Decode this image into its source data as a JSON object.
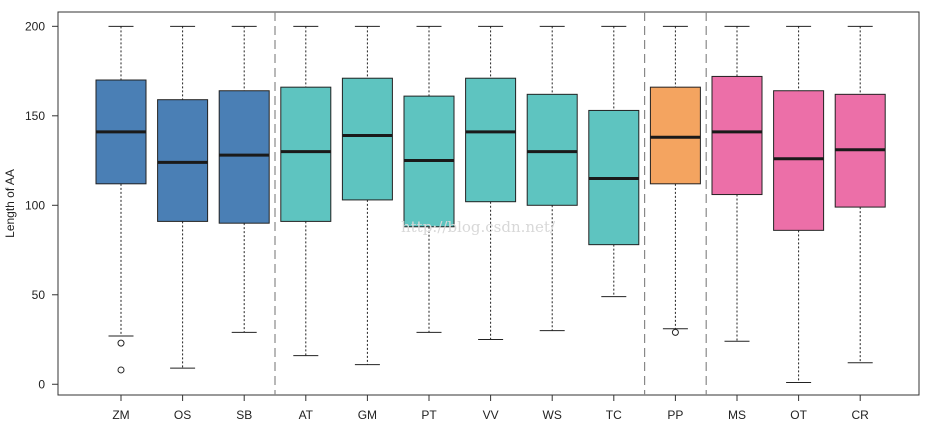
{
  "chart_data": {
    "type": "box",
    "ylabel": "Length of AA",
    "ylim": [
      -6,
      208
    ],
    "yticks": [
      0,
      50,
      100,
      150,
      200
    ],
    "categories": [
      "ZM",
      "OS",
      "SB",
      "AT",
      "GM",
      "PT",
      "VV",
      "WS",
      "TC",
      "PP",
      "MS",
      "OT",
      "CR"
    ],
    "group_colors": [
      "#4a7fb5",
      "#4a7fb5",
      "#4a7fb5",
      "#5ec4c0",
      "#5ec4c0",
      "#5ec4c0",
      "#5ec4c0",
      "#5ec4c0",
      "#5ec4c0",
      "#f4a460",
      "#ec6fa8",
      "#ec6fa8",
      "#ec6fa8"
    ],
    "separators_after": [
      "SB",
      "TC",
      "PP"
    ],
    "boxes": [
      {
        "min": 27,
        "q1": 112,
        "median": 141,
        "q3": 170,
        "max": 200,
        "outliers": [
          23,
          8
        ]
      },
      {
        "min": 9,
        "q1": 91,
        "median": 124,
        "q3": 159,
        "max": 200,
        "outliers": []
      },
      {
        "min": 29,
        "q1": 90,
        "median": 128,
        "q3": 164,
        "max": 200,
        "outliers": []
      },
      {
        "min": 16,
        "q1": 91,
        "median": 130,
        "q3": 166,
        "max": 200,
        "outliers": []
      },
      {
        "min": 11,
        "q1": 103,
        "median": 139,
        "q3": 171,
        "max": 200,
        "outliers": []
      },
      {
        "min": 29,
        "q1": 88,
        "median": 125,
        "q3": 161,
        "max": 200,
        "outliers": []
      },
      {
        "min": 25,
        "q1": 102,
        "median": 141,
        "q3": 171,
        "max": 200,
        "outliers": []
      },
      {
        "min": 30,
        "q1": 100,
        "median": 130,
        "q3": 162,
        "max": 200,
        "outliers": []
      },
      {
        "min": 49,
        "q1": 78,
        "median": 115,
        "q3": 153,
        "max": 200,
        "outliers": []
      },
      {
        "min": 31,
        "q1": 112,
        "median": 138,
        "q3": 166,
        "max": 200,
        "outliers": [
          29
        ]
      },
      {
        "min": 24,
        "q1": 106,
        "median": 141,
        "q3": 172,
        "max": 200,
        "outliers": []
      },
      {
        "min": 1,
        "q1": 86,
        "median": 126,
        "q3": 164,
        "max": 200,
        "outliers": []
      },
      {
        "min": 12,
        "q1": 99,
        "median": 131,
        "q3": 162,
        "max": 200,
        "outliers": []
      }
    ]
  },
  "watermark": "http://blog.csdn.net/"
}
